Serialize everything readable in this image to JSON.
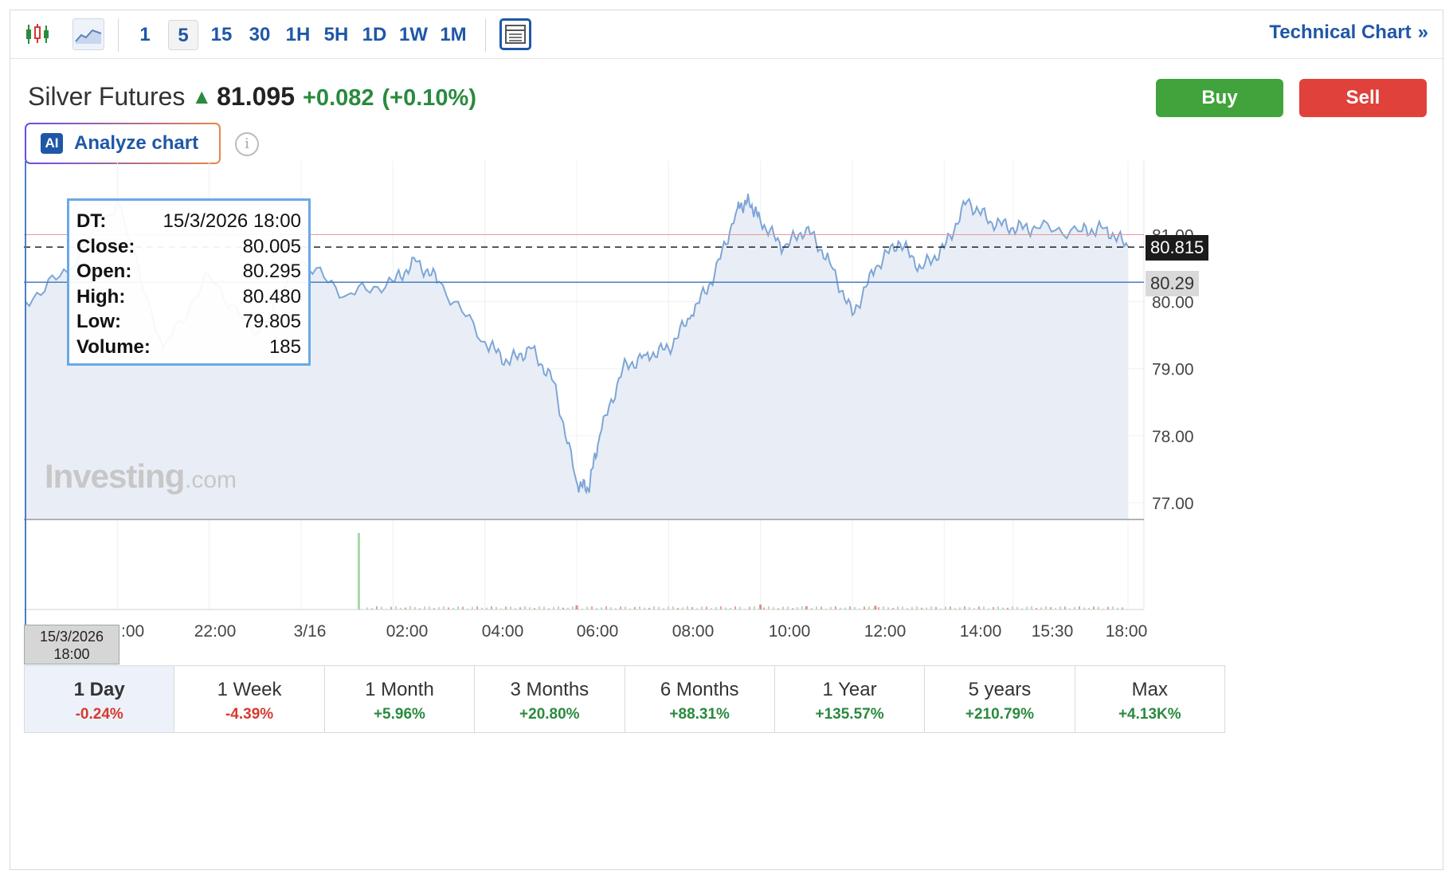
{
  "toolbar": {
    "chart_type_icons": [
      "candlestick-icon",
      "area-chart-icon"
    ],
    "timeframes": [
      "1",
      "5",
      "15",
      "30",
      "1H",
      "5H",
      "1D",
      "1W",
      "1M"
    ],
    "active_timeframe": "5",
    "layout_icon": "layout-icon",
    "technical_chart_label": "Technical Chart",
    "technical_chart_arrow": "»"
  },
  "instrument": {
    "name": "Silver Futures",
    "price": "81.095",
    "change": "+0.082",
    "change_pct": "(+0.10%)",
    "direction": "up"
  },
  "actions": {
    "buy_label": "Buy",
    "sell_label": "Sell"
  },
  "analyze": {
    "badge": "AI",
    "label": "Analyze chart",
    "info": "i"
  },
  "tooltip": {
    "rows": [
      {
        "k": "DT:",
        "v": "15/3/2026 18:00"
      },
      {
        "k": "Close:",
        "v": "80.005"
      },
      {
        "k": "Open:",
        "v": "80.295"
      },
      {
        "k": "High:",
        "v": "80.480"
      },
      {
        "k": "Low:",
        "v": "79.805"
      },
      {
        "k": "Volume:",
        "v": "185"
      }
    ]
  },
  "price_tags": {
    "last": "80.815",
    "previous_close": "80.29"
  },
  "cursor_date": {
    "line1": "15/3/2026",
    "line2": "18:00"
  },
  "watermark": {
    "brand": "Investing",
    "suffix": ".com"
  },
  "colors": {
    "line": "#7ea6d6",
    "fill": "#e9eef6",
    "up": "#2a8a3e",
    "down": "#d53a2f",
    "accent": "#1f57a7"
  },
  "chart_data": {
    "type": "area",
    "x_ticks": [
      "20:00",
      "22:00",
      "3/16",
      "02:00",
      "04:00",
      "06:00",
      "08:00",
      "10:00",
      "12:00",
      "14:00",
      "15:30",
      "18:00"
    ],
    "y_ticks": [
      "81.00",
      "80.00",
      "79.00",
      "78.00",
      "77.00"
    ],
    "ylim": [
      76.75,
      82.1
    ],
    "reference_lines": {
      "last_price": 80.815,
      "previous_close": 80.29,
      "red_line": 81.0
    },
    "x": [
      "18:00",
      "19:00",
      "20:00",
      "21:00",
      "22:00",
      "23:00",
      "00:00",
      "01:00",
      "02:00",
      "02:30",
      "03:00",
      "04:00",
      "04:30",
      "05:00",
      "05:30",
      "06:00",
      "06:15",
      "06:30",
      "07:00",
      "07:30",
      "08:00",
      "08:30",
      "09:00",
      "09:30",
      "09:45",
      "10:00",
      "10:30",
      "11:00",
      "11:30",
      "12:00",
      "12:30",
      "13:00",
      "13:30",
      "14:00",
      "14:30",
      "15:00",
      "15:30",
      "16:00",
      "17:00",
      "17:30",
      "18:00"
    ],
    "y": [
      80.0,
      80.5,
      81.5,
      79.3,
      80.4,
      79.5,
      80.6,
      80.1,
      80.3,
      80.6,
      80.3,
      79.4,
      79.1,
      79.3,
      78.8,
      77.3,
      77.2,
      78.0,
      79.0,
      79.2,
      79.3,
      79.8,
      80.4,
      81.4,
      81.5,
      81.2,
      80.8,
      81.1,
      80.6,
      79.8,
      80.5,
      80.9,
      80.5,
      80.8,
      81.5,
      81.2,
      81.1,
      81.1,
      81.05,
      81.1,
      80.82
    ],
    "volume": {
      "note_bars": "mostly near-zero; one spike near 01:00",
      "x": [
        "01:00",
        "06:00",
        "10:00",
        "11:00",
        "12:30"
      ],
      "values": [
        185,
        10,
        12,
        8,
        9
      ]
    }
  },
  "periods": [
    {
      "label": "1 Day",
      "value": "-0.24%",
      "dir": "neg",
      "active": true
    },
    {
      "label": "1 Week",
      "value": "-4.39%",
      "dir": "neg"
    },
    {
      "label": "1 Month",
      "value": "+5.96%",
      "dir": "pos"
    },
    {
      "label": "3 Months",
      "value": "+20.80%",
      "dir": "pos"
    },
    {
      "label": "6 Months",
      "value": "+88.31%",
      "dir": "pos"
    },
    {
      "label": "1 Year",
      "value": "+135.57%",
      "dir": "pos"
    },
    {
      "label": "5 years",
      "value": "+210.79%",
      "dir": "pos"
    },
    {
      "label": "Max",
      "value": "+4.13K%",
      "dir": "pos"
    }
  ]
}
